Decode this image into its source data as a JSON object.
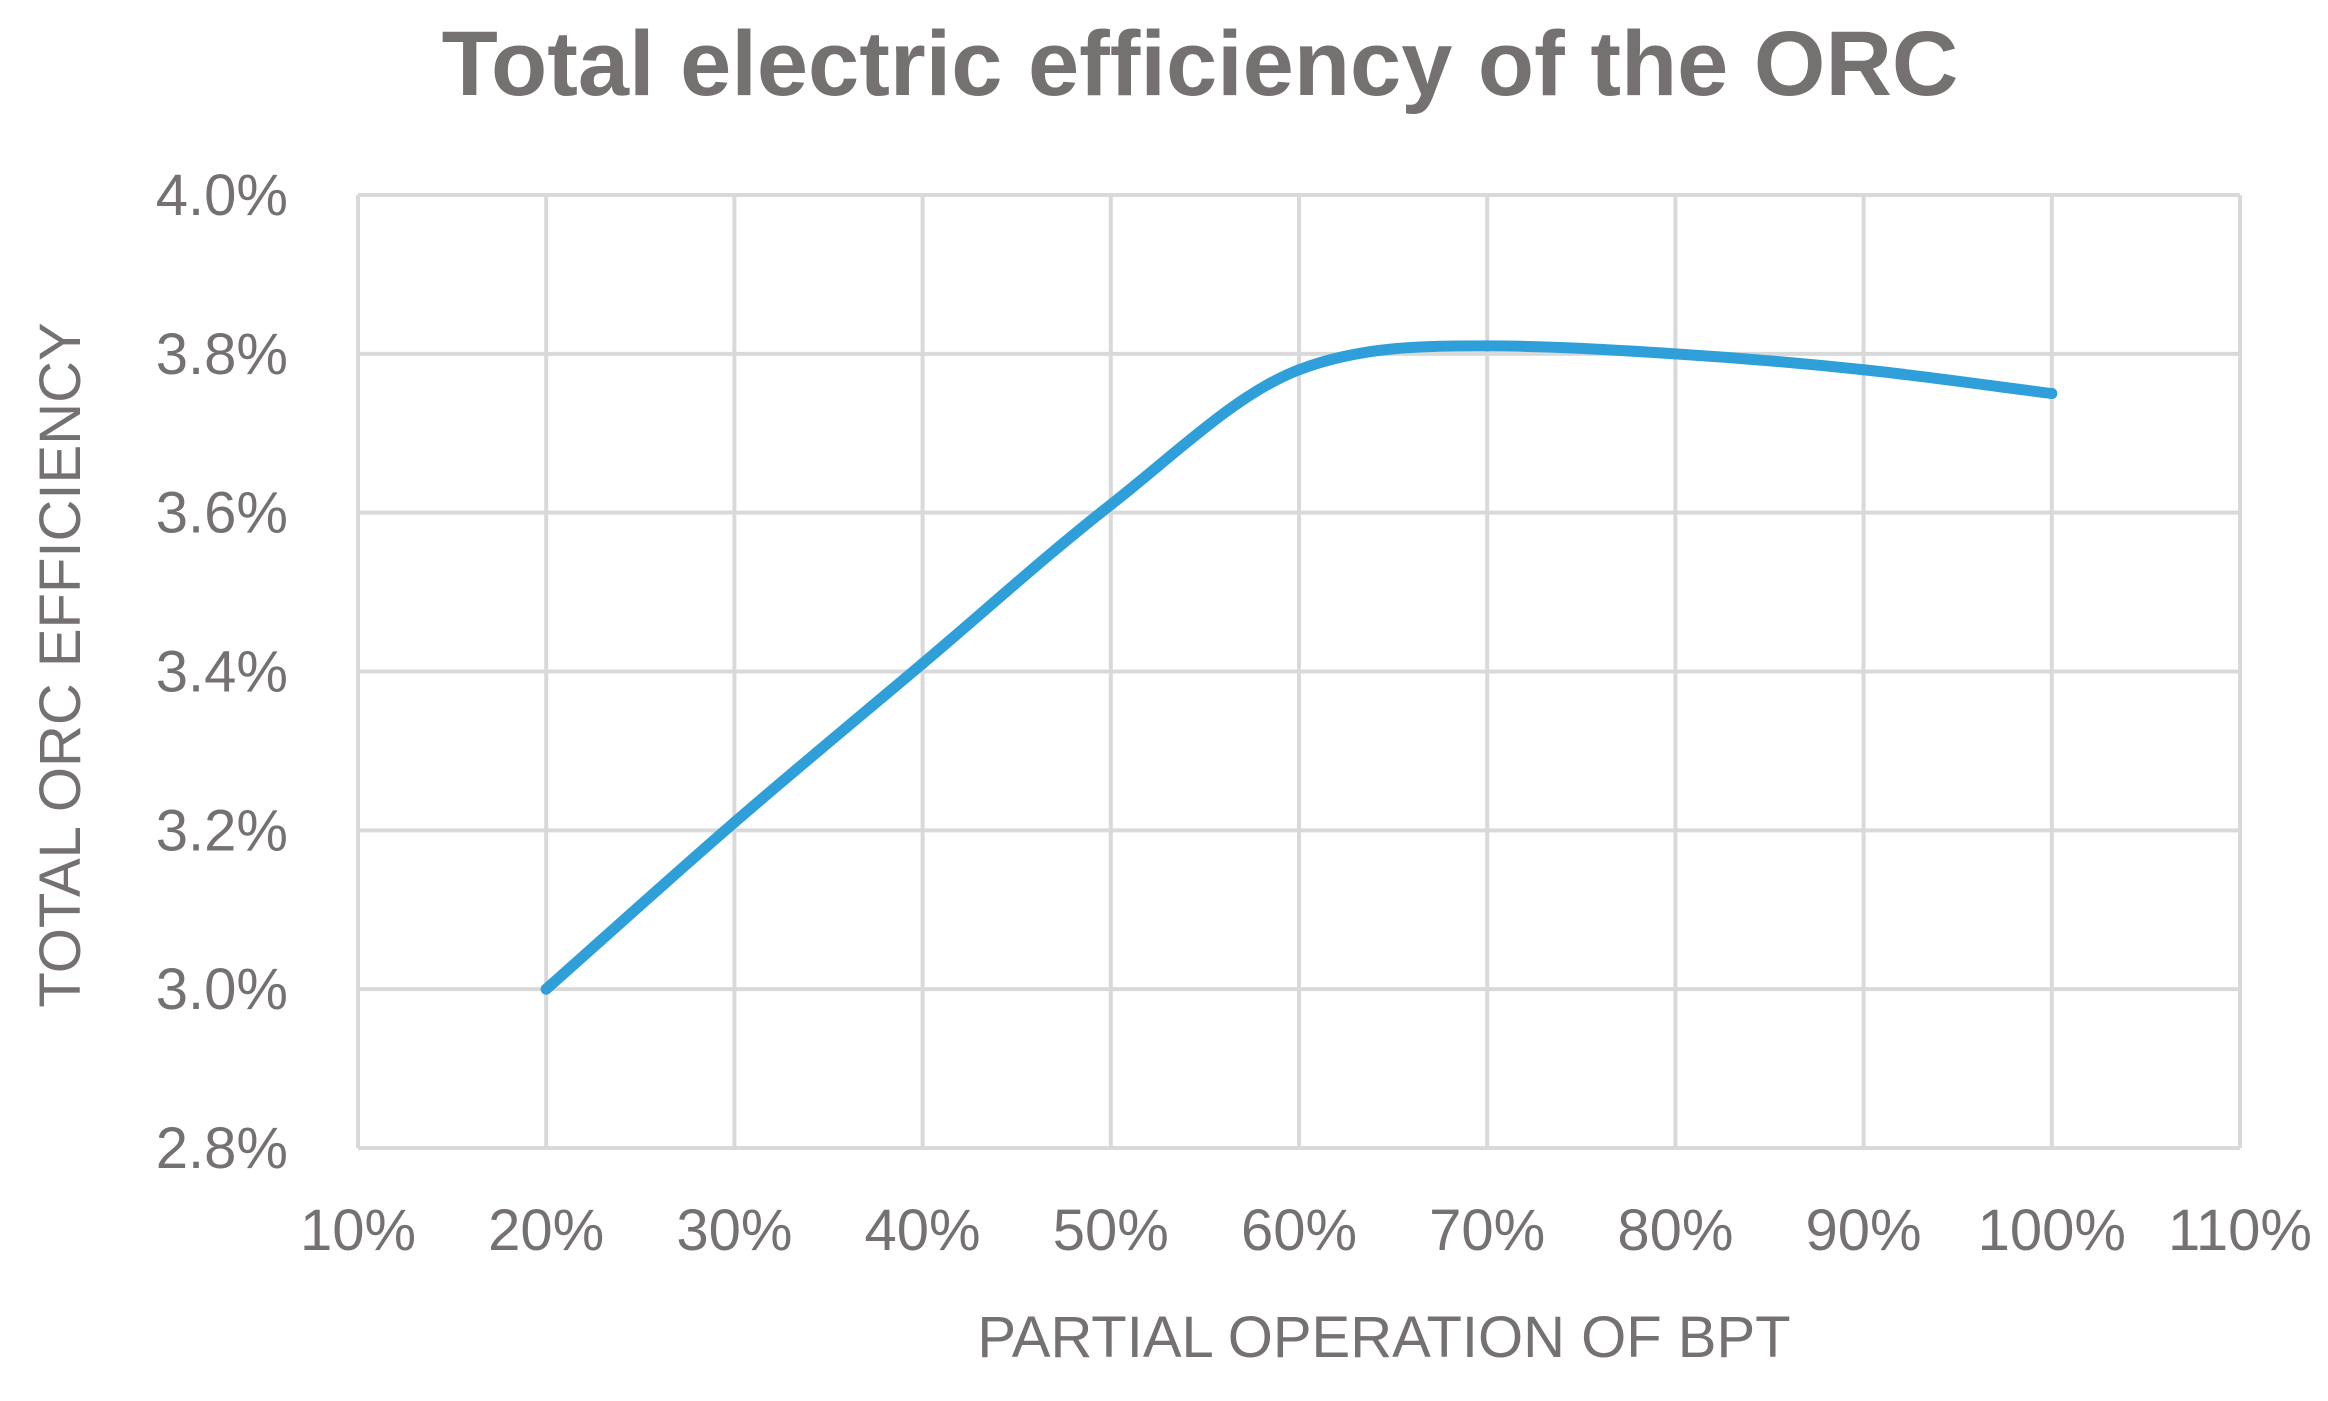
{
  "colors": {
    "series": "#2E9FD8",
    "grid": "#D9D9D9",
    "text": "#767171",
    "title": "#767171",
    "background": "#FFFFFF"
  },
  "chart_data": {
    "type": "line",
    "title": "Total electric efficiency of the ORC",
    "xlabel": "PARTIAL OPERATION OF BPT",
    "ylabel": "TOTAL ORC EFFICIENCY",
    "xlim": [
      0.1,
      1.1
    ],
    "ylim": [
      0.028,
      0.04
    ],
    "x_ticks": [
      0.1,
      0.2,
      0.3,
      0.4,
      0.5,
      0.6,
      0.7,
      0.8,
      0.9,
      1.0,
      1.1
    ],
    "x_tick_labels": [
      "10%",
      "20%",
      "30%",
      "40%",
      "50%",
      "60%",
      "70%",
      "80%",
      "90%",
      "100%",
      "110%"
    ],
    "y_ticks": [
      0.028,
      0.03,
      0.032,
      0.034,
      0.036,
      0.038,
      0.04
    ],
    "y_tick_labels": [
      "2.8%",
      "3.0%",
      "3.2%",
      "3.4%",
      "3.6%",
      "3.8%",
      "4.0%"
    ],
    "grid": true,
    "smooth": true,
    "series": [
      {
        "name": "Total ORC efficiency",
        "x": [
          0.2,
          0.3,
          0.4,
          0.5,
          0.6,
          0.7,
          0.8,
          0.9,
          1.0
        ],
        "values": [
          0.03,
          0.0321,
          0.0341,
          0.0361,
          0.0378,
          0.0381,
          0.038,
          0.0378,
          0.0375
        ]
      }
    ]
  }
}
